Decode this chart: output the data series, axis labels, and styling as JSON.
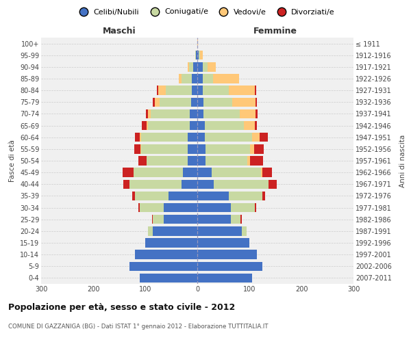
{
  "age_groups": [
    "0-4",
    "5-9",
    "10-14",
    "15-19",
    "20-24",
    "25-29",
    "30-34",
    "35-39",
    "40-44",
    "45-49",
    "50-54",
    "55-59",
    "60-64",
    "65-69",
    "70-74",
    "75-79",
    "80-84",
    "85-89",
    "90-94",
    "95-99",
    "100+"
  ],
  "birth_years": [
    "2007-2011",
    "2002-2006",
    "1997-2001",
    "1992-1996",
    "1987-1991",
    "1982-1986",
    "1977-1981",
    "1972-1976",
    "1967-1971",
    "1962-1966",
    "1957-1961",
    "1952-1956",
    "1947-1951",
    "1942-1946",
    "1937-1941",
    "1932-1936",
    "1927-1931",
    "1922-1926",
    "1917-1921",
    "1912-1916",
    "≤ 1911"
  ],
  "male_celibi": [
    110,
    130,
    120,
    100,
    85,
    65,
    65,
    55,
    30,
    28,
    18,
    18,
    18,
    15,
    15,
    12,
    10,
    10,
    8,
    2,
    0
  ],
  "male_coniugati": [
    0,
    0,
    0,
    0,
    10,
    20,
    45,
    65,
    100,
    95,
    80,
    90,
    90,
    80,
    75,
    60,
    50,
    20,
    8,
    2,
    0
  ],
  "male_vedovi": [
    0,
    0,
    0,
    0,
    0,
    0,
    0,
    0,
    0,
    0,
    0,
    1,
    2,
    3,
    5,
    10,
    15,
    5,
    2,
    0,
    0
  ],
  "male_divorziati": [
    0,
    0,
    0,
    0,
    0,
    2,
    3,
    5,
    12,
    20,
    15,
    12,
    10,
    8,
    4,
    3,
    2,
    0,
    0,
    0,
    0
  ],
  "female_celibi": [
    105,
    125,
    115,
    100,
    85,
    65,
    65,
    60,
    32,
    28,
    16,
    16,
    15,
    15,
    12,
    12,
    10,
    10,
    10,
    3,
    0
  ],
  "female_coniugati": [
    0,
    0,
    0,
    0,
    10,
    18,
    45,
    65,
    105,
    95,
    80,
    85,
    90,
    75,
    70,
    55,
    50,
    20,
    10,
    2,
    0
  ],
  "female_vedovi": [
    0,
    0,
    0,
    0,
    0,
    0,
    0,
    0,
    0,
    2,
    5,
    8,
    15,
    20,
    30,
    45,
    50,
    50,
    15,
    5,
    1
  ],
  "female_divorziati": [
    0,
    0,
    0,
    0,
    0,
    2,
    3,
    5,
    15,
    18,
    25,
    18,
    15,
    5,
    4,
    3,
    3,
    0,
    0,
    0,
    0
  ],
  "colors": {
    "celibi": "#4472c4",
    "coniugati": "#c8d9a2",
    "vedovi": "#ffc878",
    "divorziati": "#cc2222"
  },
  "legend_labels": [
    "Celibi/Nubili",
    "Coniugati/e",
    "Vedovi/e",
    "Divorziati/e"
  ],
  "title": "Popolazione per età, sesso e stato civile - 2012",
  "subtitle": "COMUNE DI GAZZANIGA (BG) - Dati ISTAT 1° gennaio 2012 - Elaborazione TUTTITALIA.IT",
  "ylabel_left": "Fasce di età",
  "ylabel_right": "Anni di nascita",
  "xlabel_left": "Maschi",
  "xlabel_right": "Femmine",
  "xlim": 300,
  "bg_color": "#ffffff",
  "plot_bg_color": "#f0f0f0"
}
